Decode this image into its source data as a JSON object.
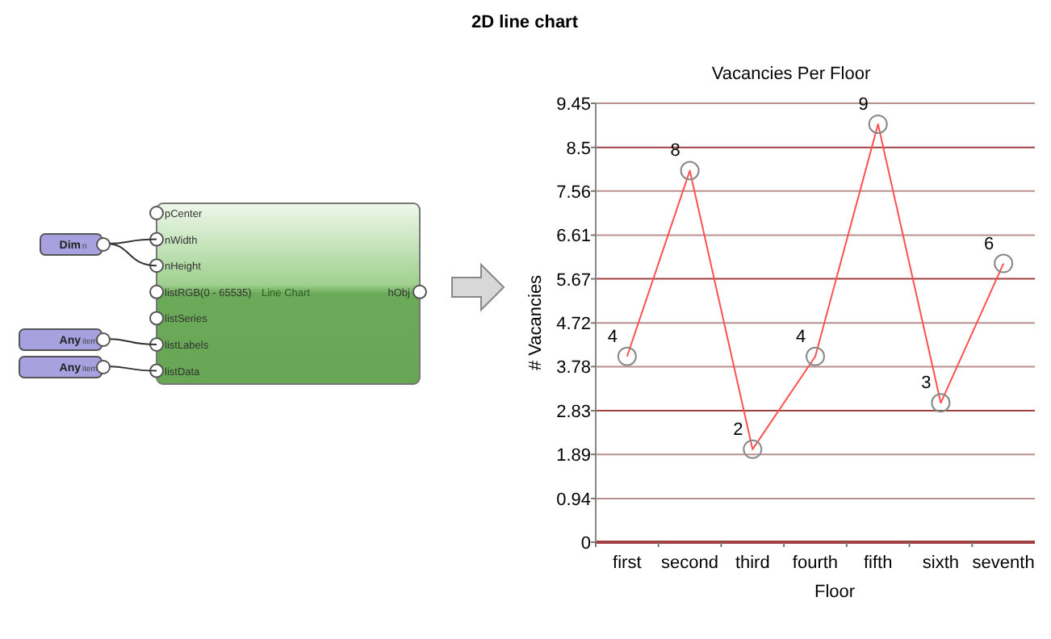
{
  "chart_data": [
    {
      "type": "other",
      "title": "2D line chart",
      "annotations": [
        "pCenter",
        "nWidth",
        "nHeight",
        "listRGB(0 - 65535)",
        "listSeries",
        "listLabels",
        "listData",
        "Line Chart",
        "hObj",
        "Dim",
        "n",
        "Any",
        "item",
        "Any",
        "item"
      ]
    },
    {
      "type": "line",
      "title": "Vacancies Per Floor",
      "xlabel": "Floor",
      "ylabel": "# Vacancies",
      "categories": [
        "first",
        "second",
        "third",
        "fourth",
        "fifth",
        "sixth",
        "seventh"
      ],
      "series": [
        {
          "color": "#ff5050",
          "values": [
            4,
            8,
            2,
            4,
            9,
            3,
            6
          ]
        }
      ],
      "ylim": [
        0,
        9.45
      ],
      "yticks": [
        0,
        0.94,
        1.89,
        2.83,
        3.78,
        4.72,
        5.67,
        6.61,
        7.56,
        8.5,
        9.45
      ],
      "grid": "y",
      "marker": "circle",
      "data_labels": true
    }
  ]
}
